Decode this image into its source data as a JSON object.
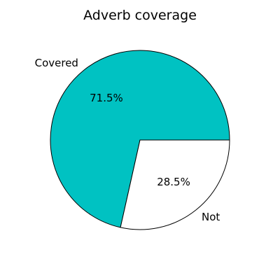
{
  "chart_data": {
    "type": "pie",
    "title": "Adverb coverage",
    "slices": [
      {
        "label": "Covered",
        "percent_label": "71.5%",
        "value": 71.5,
        "color": "#00c2c2"
      },
      {
        "label": "Not",
        "percent_label": "28.5%",
        "value": 28.5,
        "color": "#ffffff"
      }
    ],
    "start_angle_deg": 0,
    "direction": "counterclockwise",
    "edge_color": "#000000"
  }
}
